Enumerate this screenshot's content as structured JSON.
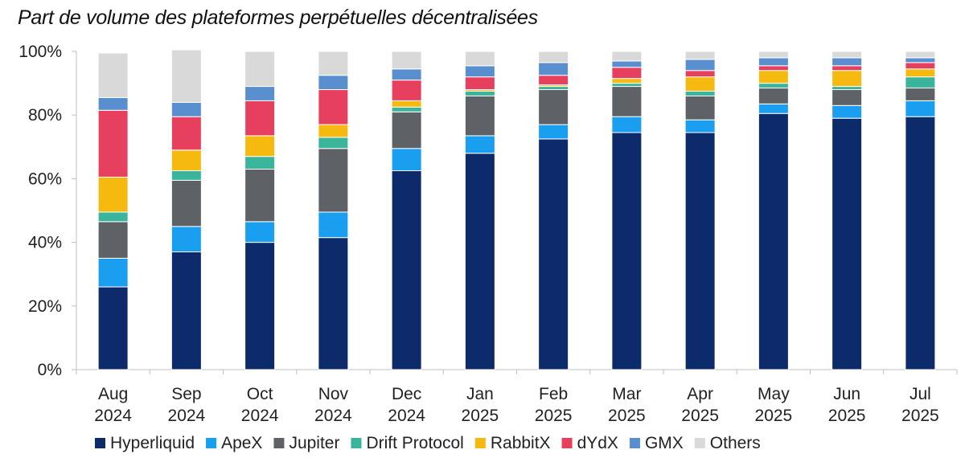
{
  "chart_data": {
    "type": "bar",
    "stacked": true,
    "title": "Part de volume des plateformes perpétuelles décentralisées",
    "xlabel": "",
    "ylabel": "",
    "ylim": [
      0,
      100
    ],
    "yticks": [
      0,
      20,
      40,
      60,
      80,
      100
    ],
    "ytick_labels": [
      "0%",
      "20%",
      "40%",
      "60%",
      "80%",
      "100%"
    ],
    "legend_position": "bottom",
    "categories": [
      [
        "Aug",
        "2024"
      ],
      [
        "Sep",
        "2024"
      ],
      [
        "Oct",
        "2024"
      ],
      [
        "Nov",
        "2024"
      ],
      [
        "Dec",
        "2024"
      ],
      [
        "Jan",
        "2025"
      ],
      [
        "Feb",
        "2025"
      ],
      [
        "Mar",
        "2025"
      ],
      [
        "Apr",
        "2025"
      ],
      [
        "May",
        "2025"
      ],
      [
        "Jun",
        "2025"
      ],
      [
        "Jul",
        "2025"
      ]
    ],
    "series": [
      {
        "name": "Hyperliquid",
        "color": "#0d2a6b",
        "values": [
          26,
          37,
          40,
          41.5,
          62.5,
          68,
          72.5,
          74.5,
          74.5,
          80.5,
          79,
          79.5
        ]
      },
      {
        "name": "ApeX",
        "color": "#1a9ef0",
        "values": [
          9,
          8,
          6.5,
          8,
          7,
          5.5,
          4.5,
          5,
          4,
          3,
          4,
          5
        ]
      },
      {
        "name": "Jupiter",
        "color": "#5e6266",
        "values": [
          11.5,
          14.5,
          16.5,
          20,
          11.5,
          12.5,
          11,
          9.5,
          7.5,
          5,
          5,
          4
        ]
      },
      {
        "name": "Drift Protocol",
        "color": "#3ab59b",
        "values": [
          3,
          3,
          4,
          3.5,
          1.5,
          1.5,
          1,
          1,
          1.5,
          1.5,
          1,
          3.5
        ]
      },
      {
        "name": "RabbitX",
        "color": "#f5b90f",
        "values": [
          11,
          6.5,
          6.5,
          4,
          2,
          0.5,
          0.5,
          1.5,
          4.5,
          4,
          5,
          2.5
        ]
      },
      {
        "name": "dYdX",
        "color": "#e6405e",
        "values": [
          21,
          10.5,
          11,
          11,
          6.5,
          4,
          3,
          3.5,
          2,
          1.5,
          1.5,
          2
        ]
      },
      {
        "name": "GMX",
        "color": "#5a8fcf",
        "values": [
          4,
          4.5,
          4.5,
          4.5,
          3.5,
          3.5,
          4,
          2,
          3.5,
          2.5,
          2.5,
          1.5
        ]
      },
      {
        "name": "Others",
        "color": "#d9d9d9",
        "values": [
          14,
          16.5,
          11,
          7.5,
          5.5,
          4.5,
          3.5,
          3,
          2.5,
          2,
          2,
          2
        ]
      }
    ]
  }
}
